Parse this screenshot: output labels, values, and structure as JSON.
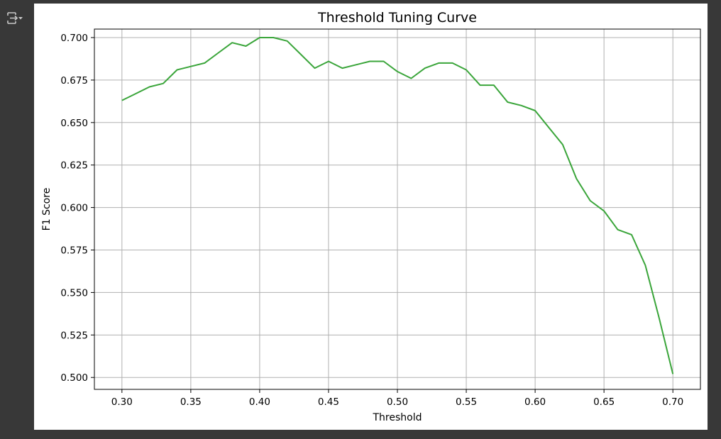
{
  "output_area": {
    "toggle_icon": "output-collapse-icon"
  },
  "colors": {
    "background": "#383838",
    "figure_background": "#ffffff",
    "line": "#3aa53a",
    "grid": "#b0b0b0"
  },
  "chart_data": {
    "type": "line",
    "title": "Threshold Tuning Curve",
    "xlabel": "Threshold",
    "ylabel": "F1 Score",
    "xlim": [
      0.28,
      0.72
    ],
    "ylim": [
      0.493,
      0.705
    ],
    "grid": true,
    "xticks": [
      0.3,
      0.35,
      0.4,
      0.45,
      0.5,
      0.55,
      0.6,
      0.65,
      0.7
    ],
    "xtick_labels": [
      "0.30",
      "0.35",
      "0.40",
      "0.45",
      "0.50",
      "0.55",
      "0.60",
      "0.65",
      "0.70"
    ],
    "yticks": [
      0.5,
      0.525,
      0.55,
      0.575,
      0.6,
      0.625,
      0.65,
      0.675,
      0.7
    ],
    "ytick_labels": [
      "0.500",
      "0.525",
      "0.550",
      "0.575",
      "0.600",
      "0.625",
      "0.650",
      "0.675",
      "0.700"
    ],
    "series": [
      {
        "color": "#3aa53a",
        "x": [
          0.3,
          0.31,
          0.32,
          0.33,
          0.34,
          0.35,
          0.36,
          0.37,
          0.38,
          0.39,
          0.4,
          0.41,
          0.42,
          0.43,
          0.44,
          0.45,
          0.46,
          0.47,
          0.48,
          0.49,
          0.5,
          0.51,
          0.52,
          0.53,
          0.54,
          0.55,
          0.56,
          0.57,
          0.58,
          0.59,
          0.6,
          0.61,
          0.62,
          0.63,
          0.64,
          0.65,
          0.66,
          0.67,
          0.68,
          0.69,
          0.7
        ],
        "y": [
          0.663,
          0.667,
          0.671,
          0.673,
          0.681,
          0.683,
          0.685,
          0.691,
          0.697,
          0.695,
          0.7,
          0.7,
          0.698,
          0.69,
          0.682,
          0.686,
          0.682,
          0.684,
          0.686,
          0.686,
          0.68,
          0.676,
          0.682,
          0.685,
          0.685,
          0.681,
          0.672,
          0.672,
          0.662,
          0.66,
          0.657,
          0.647,
          0.637,
          0.617,
          0.604,
          0.598,
          0.587,
          0.584,
          0.566,
          0.535,
          0.502
        ]
      }
    ]
  }
}
